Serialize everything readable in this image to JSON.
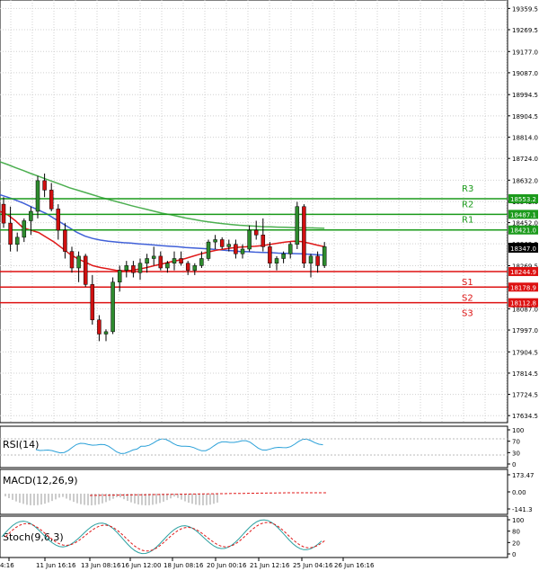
{
  "colors": {
    "background": "#ffffff",
    "grid": "#d0d0d0",
    "frame": "#000000",
    "bull_candle": "#2e8b2e",
    "bear_candle": "#d01010",
    "ma_red": "#e01818",
    "ma_blue": "#4060d8",
    "ma_green": "#4caf50",
    "resistance": "#1a9a1a",
    "support": "#dd1111",
    "price_tag": "#000000",
    "rsi": "#2aa0d8",
    "macd": "#e01818",
    "stoch_main": "#2aa0a0",
    "stoch_signal": "#e01818"
  },
  "price_axis": {
    "ticks": [
      "19359.5",
      "19269.5",
      "19177.0",
      "19087.0",
      "18994.5",
      "18904.5",
      "18814.0",
      "18724.0",
      "18632.0",
      "18542.0",
      "18452.0",
      "18362.5",
      "18269.5",
      "18179.5",
      "18087.0",
      "17997.0",
      "17904.5",
      "17814.5",
      "17724.5",
      "17634.5"
    ],
    "current_price": "18347.0"
  },
  "levels": [
    {
      "name": "R3",
      "value": "18553.2",
      "type": "resistance"
    },
    {
      "name": "R2",
      "value": "18487.1",
      "type": "resistance"
    },
    {
      "name": "R1",
      "value": "18421.0",
      "type": "resistance"
    },
    {
      "name": "S1",
      "value": "18244.9",
      "type": "support"
    },
    {
      "name": "S2",
      "value": "18178.9",
      "type": "support"
    },
    {
      "name": "S3",
      "value": "18112.8",
      "type": "support"
    }
  ],
  "time_axis": {
    "labels": [
      "4:16",
      "11 Jun 16:16",
      "13 Jun 08:16",
      "16 Jun 12:00",
      "18 Jun 08:16",
      "20 Jun 00:16",
      "21 Jun 12:16",
      "25 Jun 04:16",
      "26 Jun 16:16"
    ]
  },
  "indicators": {
    "rsi": {
      "label": "RSI(14)",
      "ticks": [
        "100",
        "70",
        "30",
        "0"
      ]
    },
    "macd": {
      "label": "MACD(12,26,9)",
      "ticks": [
        "173.47",
        "0.00",
        "-141.3"
      ]
    },
    "stoch": {
      "label": "Stoch(9,6,3)",
      "ticks": [
        "100",
        "80",
        "20",
        "0"
      ]
    }
  },
  "chart_data": {
    "type": "candlestick",
    "y_range": [
      17620,
      19380
    ],
    "candles": [
      [
        18530,
        18560,
        18430,
        18450
      ],
      [
        18450,
        18520,
        18330,
        18360
      ],
      [
        18360,
        18410,
        18330,
        18390
      ],
      [
        18390,
        18470,
        18370,
        18460
      ],
      [
        18460,
        18520,
        18400,
        18500
      ],
      [
        18500,
        18650,
        18470,
        18630
      ],
      [
        18630,
        18660,
        18560,
        18590
      ],
      [
        18590,
        18620,
        18500,
        18510
      ],
      [
        18510,
        18530,
        18380,
        18420
      ],
      [
        18420,
        18450,
        18300,
        18330
      ],
      [
        18330,
        18350,
        18240,
        18260
      ],
      [
        18260,
        18330,
        18200,
        18310
      ],
      [
        18310,
        18320,
        18180,
        18190
      ],
      [
        18190,
        18230,
        18020,
        18040
      ],
      [
        18040,
        18060,
        17950,
        17980
      ],
      [
        17980,
        18000,
        17950,
        17990
      ],
      [
        17990,
        18220,
        17980,
        18200
      ],
      [
        18200,
        18270,
        18160,
        18250
      ],
      [
        18250,
        18290,
        18220,
        18270
      ],
      [
        18270,
        18290,
        18220,
        18240
      ],
      [
        18240,
        18300,
        18210,
        18280
      ],
      [
        18280,
        18320,
        18240,
        18300
      ],
      [
        18300,
        18350,
        18270,
        18310
      ],
      [
        18310,
        18330,
        18250,
        18260
      ],
      [
        18260,
        18290,
        18240,
        18280
      ],
      [
        18280,
        18330,
        18250,
        18300
      ],
      [
        18300,
        18330,
        18270,
        18280
      ],
      [
        18280,
        18290,
        18230,
        18250
      ],
      [
        18250,
        18280,
        18230,
        18270
      ],
      [
        18270,
        18330,
        18260,
        18300
      ],
      [
        18300,
        18380,
        18290,
        18370
      ],
      [
        18370,
        18400,
        18340,
        18380
      ],
      [
        18380,
        18390,
        18340,
        18350
      ],
      [
        18350,
        18380,
        18330,
        18360
      ],
      [
        18360,
        18380,
        18300,
        18320
      ],
      [
        18320,
        18360,
        18300,
        18340
      ],
      [
        18340,
        18440,
        18330,
        18420
      ],
      [
        18420,
        18460,
        18380,
        18400
      ],
      [
        18400,
        18470,
        18330,
        18350
      ],
      [
        18350,
        18370,
        18260,
        18280
      ],
      [
        18280,
        18310,
        18250,
        18300
      ],
      [
        18300,
        18330,
        18280,
        18320
      ],
      [
        18320,
        18370,
        18300,
        18360
      ],
      [
        18360,
        18540,
        18340,
        18520
      ],
      [
        18520,
        18530,
        18260,
        18280
      ],
      [
        18280,
        18320,
        18220,
        18310
      ],
      [
        18310,
        18330,
        18240,
        18270
      ],
      [
        18270,
        18370,
        18260,
        18350
      ]
    ],
    "ma_red": [
      18500,
      18485,
      18460,
      18430,
      18420,
      18410,
      18390,
      18370,
      18345,
      18320,
      18300,
      18285,
      18270,
      18262,
      18256,
      18250,
      18248,
      18250,
      18255,
      18262,
      18270,
      18277,
      18285,
      18292,
      18300,
      18310,
      18320,
      18328,
      18335,
      18340,
      18345,
      18348,
      18350,
      18352,
      18355,
      18360,
      18365,
      18370,
      18373,
      18372,
      18365,
      18357,
      18350
    ],
    "ma_blue": [
      18570,
      18560,
      18548,
      18535,
      18520,
      18505,
      18490,
      18470,
      18450,
      18430,
      18410,
      18395,
      18385,
      18378,
      18373,
      18370,
      18367,
      18365,
      18362,
      18360,
      18357,
      18354,
      18352,
      18350,
      18347,
      18345,
      18343,
      18341,
      18338,
      18335,
      18333,
      18330,
      18329,
      18327,
      18326,
      18325,
      18323,
      18322,
      18321,
      18320,
      18318,
      18316,
      18314
    ],
    "ma_green": [
      18710,
      18698,
      18685,
      18673,
      18660,
      18648,
      18636,
      18624,
      18612,
      18600,
      18590,
      18580,
      18570,
      18560,
      18551,
      18542,
      18533,
      18524,
      18516,
      18508,
      18500,
      18492,
      18486,
      18479,
      18472,
      18466,
      18460,
      18455,
      18451,
      18447,
      18444,
      18441,
      18439,
      18437,
      18435,
      18434,
      18433,
      18432,
      18431,
      18430,
      18430,
      18429,
      18428
    ]
  }
}
